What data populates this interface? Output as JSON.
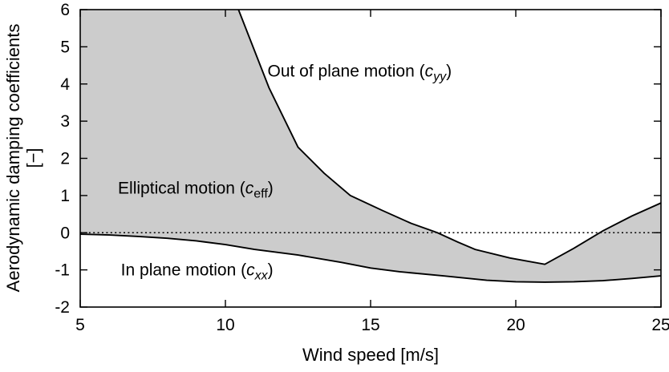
{
  "chart_data": {
    "type": "area",
    "title": "",
    "xlabel": "Wind speed [m/s]",
    "ylabel_line1": "Aerodynamic damping coefficients",
    "ylabel_line2": "[−]",
    "xlim": [
      5,
      25
    ],
    "ylim": [
      -2,
      6
    ],
    "xticks": [
      5,
      10,
      15,
      20,
      25
    ],
    "yticks": [
      -2,
      -1,
      0,
      1,
      2,
      3,
      4,
      5,
      6
    ],
    "grid": false,
    "legend": false,
    "band_fill": "#cccccc",
    "line_color": "#000000",
    "background": "#ffffff",
    "zero_line": {
      "y": 0,
      "style": "dotted"
    },
    "series": [
      {
        "name": "out-of-plane-motion-cyy",
        "x": [
          5,
          9,
          10,
          10.45,
          11.5,
          12.5,
          13.4,
          14.3,
          15.4,
          16.4,
          17.3,
          18.0,
          18.6,
          19.8,
          21,
          22,
          23,
          24,
          25
        ],
        "y": [
          9,
          8,
          6.9,
          6.0,
          3.9,
          2.3,
          1.6,
          1.0,
          0.6,
          0.25,
          0.0,
          -0.25,
          -0.45,
          -0.68,
          -0.85,
          -0.42,
          0.05,
          0.45,
          0.8
        ]
      },
      {
        "name": "in-plane-motion-cxx",
        "x": [
          5,
          6,
          7,
          8,
          9,
          10,
          11,
          12.5,
          14,
          15,
          16,
          17.5,
          19,
          20,
          21,
          22,
          23,
          24,
          25
        ],
        "y": [
          -0.04,
          -0.06,
          -0.1,
          -0.15,
          -0.22,
          -0.32,
          -0.45,
          -0.6,
          -0.8,
          -0.95,
          -1.05,
          -1.16,
          -1.28,
          -1.32,
          -1.33,
          -1.32,
          -1.29,
          -1.23,
          -1.16
        ]
      }
    ],
    "annotations": [
      {
        "pre": "Out of plane motion (",
        "sym": "c",
        "sub": "yy",
        "post": ")",
        "sub_style": "italic",
        "x": 11.45,
        "y": 4.2
      },
      {
        "pre": "Elliptical motion (",
        "sym": "c",
        "sub": "eff",
        "post": ")",
        "sub_style": "normal",
        "x": 6.3,
        "y": 1.05
      },
      {
        "pre": "In plane motion (",
        "sym": "c",
        "sub": "xx",
        "post": ")",
        "sub_style": "italic",
        "x": 6.4,
        "y": -1.15
      }
    ]
  }
}
